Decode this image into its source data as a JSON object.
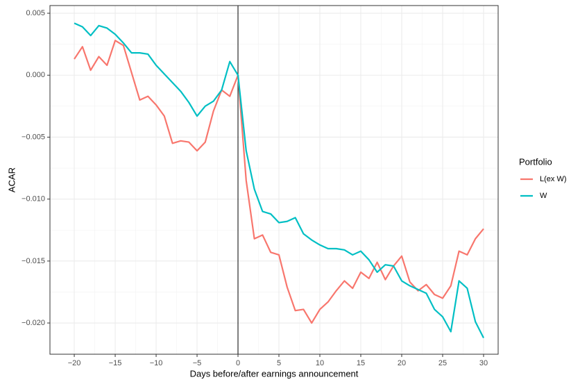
{
  "chart_data": {
    "type": "line",
    "xlabel": "Days before/after earnings announcement",
    "ylabel": "ACAR",
    "legend_title": "Portfolio",
    "legend_position": "right",
    "grid": true,
    "vline": 0,
    "x": [
      -20,
      -19,
      -18,
      -17,
      -16,
      -15,
      -14,
      -13,
      -12,
      -11,
      -10,
      -9,
      -8,
      -7,
      -6,
      -5,
      -4,
      -3,
      -2,
      -1,
      0,
      1,
      2,
      3,
      4,
      5,
      6,
      7,
      8,
      9,
      10,
      11,
      12,
      13,
      14,
      15,
      16,
      17,
      18,
      19,
      20,
      21,
      22,
      23,
      24,
      25,
      26,
      27,
      28,
      29,
      30
    ],
    "series": [
      {
        "name": "L(ex W)",
        "color": "#f8766d",
        "values": [
          0.0013,
          0.0023,
          0.0004,
          0.0015,
          0.0008,
          0.0028,
          0.0024,
          0.0002,
          -0.002,
          -0.0017,
          -0.0024,
          -0.0033,
          -0.0055,
          -0.0053,
          -0.0054,
          -0.0061,
          -0.0054,
          -0.0029,
          -0.0012,
          -0.0017,
          0.0,
          -0.0085,
          -0.0132,
          -0.0129,
          -0.0143,
          -0.0145,
          -0.0171,
          -0.019,
          -0.0189,
          -0.02,
          -0.0189,
          -0.0183,
          -0.0174,
          -0.0166,
          -0.0172,
          -0.0159,
          -0.0164,
          -0.0151,
          -0.0165,
          -0.0154,
          -0.0146,
          -0.0167,
          -0.0174,
          -0.0169,
          -0.0177,
          -0.018,
          -0.017,
          -0.0142,
          -0.0145,
          -0.0132,
          -0.0124
        ]
      },
      {
        "name": "W",
        "color": "#00bfc4",
        "values": [
          0.0042,
          0.0039,
          0.0032,
          0.004,
          0.0038,
          0.0033,
          0.0026,
          0.0018,
          0.0018,
          0.0017,
          0.0008,
          0.0001,
          -0.0006,
          -0.0013,
          -0.0022,
          -0.0033,
          -0.0025,
          -0.0021,
          -0.0012,
          0.0011,
          0.0,
          -0.0061,
          -0.0092,
          -0.011,
          -0.0112,
          -0.0119,
          -0.0118,
          -0.0115,
          -0.0128,
          -0.0133,
          -0.0137,
          -0.014,
          -0.014,
          -0.0141,
          -0.0145,
          -0.0142,
          -0.0149,
          -0.0159,
          -0.0153,
          -0.0154,
          -0.0166,
          -0.017,
          -0.0173,
          -0.0176,
          -0.0189,
          -0.0195,
          -0.0207,
          -0.0166,
          -0.0172,
          -0.0199,
          -0.0212
        ]
      }
    ],
    "xlim": [
      -22.97,
      31.78
    ],
    "ylim": [
      -0.02252,
      0.00562
    ],
    "xticks": [
      {
        "value": -20,
        "label": "−20"
      },
      {
        "value": -15,
        "label": "−15"
      },
      {
        "value": -10,
        "label": "−10"
      },
      {
        "value": -5,
        "label": "−5"
      },
      0,
      5,
      10,
      15,
      20,
      25,
      30
    ],
    "yticks": [
      {
        "value": -0.02,
        "label": "−0.020"
      },
      {
        "value": -0.015,
        "label": "−0.015"
      },
      {
        "value": -0.01,
        "label": "−0.010"
      },
      {
        "value": -0.005,
        "label": "−0.005"
      },
      {
        "value": 0,
        "label": "0.000"
      },
      {
        "value": 0.005,
        "label": "0.005"
      }
    ]
  }
}
